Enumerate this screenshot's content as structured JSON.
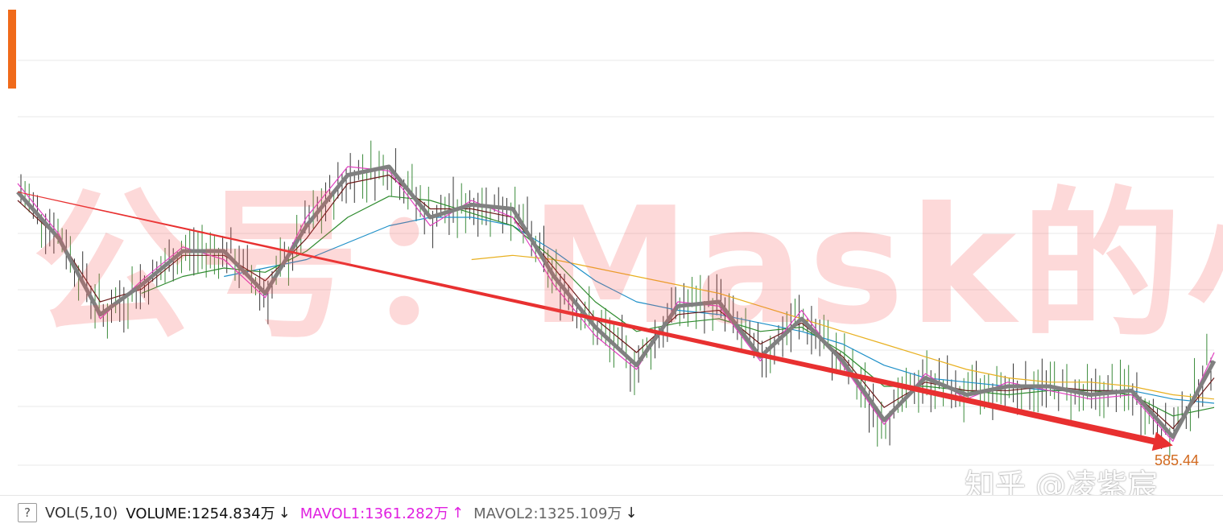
{
  "colors": {
    "ma_short": "#808080",
    "ma_mid": "#6b1a1a",
    "ma_pink": "#e040c0",
    "ma_green": "#2e8b2e",
    "ma_blue": "#1e90c8",
    "ma_yellow": "#e8b020",
    "trend_arrow": "#e83030",
    "candle_up": "#3a8a3a",
    "candle_down": "#333333",
    "grid": "#e8e8e8",
    "accent_tab": "#f06a1a"
  },
  "chart_data": {
    "type": "line",
    "x": [
      1,
      2,
      3,
      4,
      5,
      6,
      7,
      8,
      9,
      10,
      11,
      12,
      13,
      14,
      15,
      16,
      17,
      18,
      19,
      20,
      21,
      22,
      23,
      24,
      25,
      26,
      27,
      28,
      29,
      30
    ],
    "series": [
      {
        "key": "thick",
        "values": [
          0.66,
          0.55,
          0.37,
          0.44,
          0.52,
          0.52,
          0.42,
          0.58,
          0.7,
          0.72,
          0.6,
          0.63,
          0.62,
          0.46,
          0.34,
          0.25,
          0.39,
          0.4,
          0.27,
          0.36,
          0.26,
          0.12,
          0.22,
          0.18,
          0.2,
          0.2,
          0.18,
          0.19,
          0.08,
          0.26
        ]
      },
      {
        "key": "pink",
        "values": [
          0.68,
          0.56,
          0.36,
          0.45,
          0.53,
          0.5,
          0.41,
          0.6,
          0.72,
          0.71,
          0.58,
          0.64,
          0.6,
          0.44,
          0.32,
          0.24,
          0.4,
          0.39,
          0.26,
          0.38,
          0.25,
          0.11,
          0.23,
          0.17,
          0.21,
          0.19,
          0.17,
          0.18,
          0.07,
          0.28
        ]
      },
      {
        "key": "mid",
        "values": [
          0.64,
          0.55,
          0.4,
          0.43,
          0.51,
          0.51,
          0.45,
          0.55,
          0.68,
          0.7,
          0.62,
          0.62,
          0.6,
          0.48,
          0.36,
          0.28,
          0.37,
          0.38,
          0.3,
          0.35,
          0.27,
          0.15,
          0.21,
          0.19,
          0.19,
          0.2,
          0.19,
          0.19,
          0.1,
          0.22
        ]
      },
      {
        "key": "green",
        "values": [
          null,
          null,
          null,
          0.42,
          0.46,
          0.48,
          0.47,
          0.52,
          0.6,
          0.65,
          0.64,
          0.61,
          0.58,
          0.5,
          0.4,
          0.33,
          0.35,
          0.36,
          0.33,
          0.34,
          0.28,
          0.2,
          0.2,
          0.19,
          0.18,
          0.19,
          0.19,
          0.18,
          0.13,
          0.15
        ]
      },
      {
        "key": "blue",
        "values": [
          null,
          null,
          null,
          null,
          null,
          0.46,
          0.48,
          0.5,
          0.54,
          0.58,
          0.6,
          0.6,
          0.58,
          0.52,
          0.45,
          0.4,
          0.38,
          0.37,
          0.35,
          0.33,
          0.3,
          0.25,
          0.22,
          0.21,
          0.2,
          0.19,
          0.19,
          0.19,
          0.17,
          0.16
        ]
      },
      {
        "key": "yellow",
        "values": [
          null,
          null,
          null,
          null,
          null,
          null,
          null,
          null,
          null,
          null,
          null,
          0.5,
          0.51,
          0.5,
          0.48,
          0.46,
          0.44,
          0.42,
          0.39,
          0.36,
          0.33,
          0.3,
          0.27,
          0.24,
          0.22,
          0.21,
          0.21,
          0.2,
          0.18,
          0.17
        ]
      }
    ],
    "trend_line": {
      "from": [
        1,
        0.66
      ],
      "to": [
        29,
        0.06
      ]
    },
    "ylim": [
      0,
      1
    ],
    "grid": true,
    "price_label": "585.44"
  },
  "indicator_bar": {
    "help_label": "?",
    "vol_label": "VOL(5,10)",
    "volume_text": "VOLUME:1254.834万",
    "volume_arrow": "↓",
    "mavol1_text": "MAVOL1:1361.282万",
    "mavol1_arrow": "↑",
    "mavol2_text": "MAVOL2:1325.109万",
    "mavol2_arrow": "↓"
  },
  "watermark": "知乎 @凌紫宸",
  "stamp_text": "公号：Mask的小酒馆"
}
